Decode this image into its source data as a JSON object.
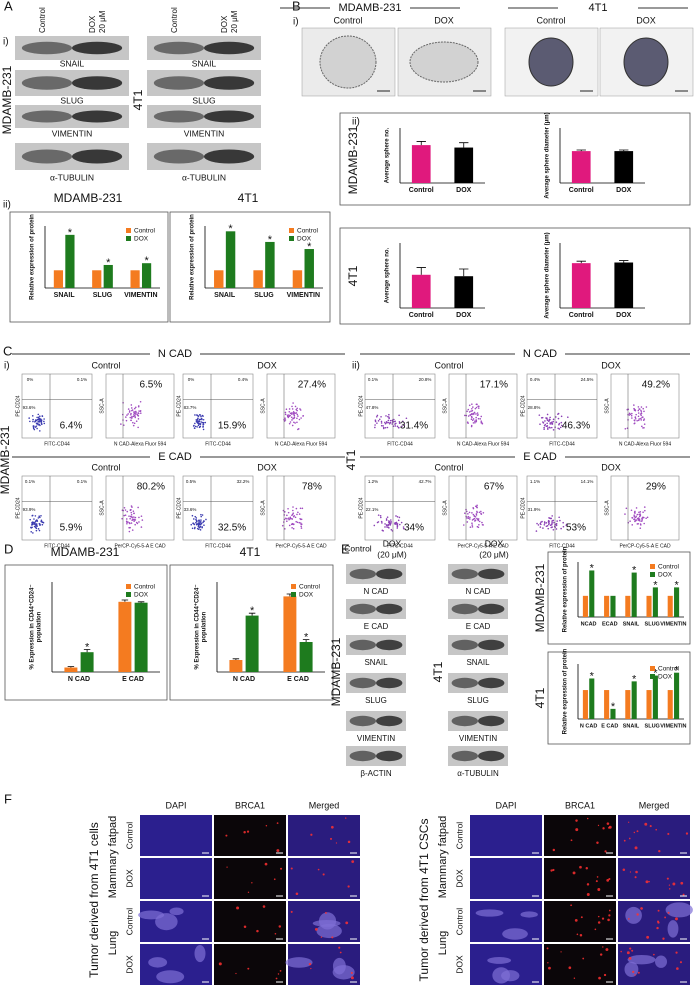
{
  "A": {
    "letter": "A",
    "i": "i)",
    "ii": "ii)",
    "lanes": [
      "Control",
      "DOX",
      "20 μM"
    ],
    "blots": [
      {
        "cell": "MDAMB-231",
        "bands": [
          "SNAIL",
          "SLUG",
          "VIMENTIN",
          "α-TUBULIN"
        ]
      },
      {
        "cell": "4T1",
        "bands": [
          "SNAIL",
          "SLUG",
          "VIMENTIN",
          "α-TUBULIN"
        ]
      }
    ]
  },
  "B": {
    "letter": "B",
    "i": "i)",
    "ii": "ii)",
    "groups": [
      {
        "cell": "MDAMB-231",
        "conditions": [
          "Control",
          "DOX"
        ]
      },
      {
        "cell": "4T1",
        "conditions": [
          "Control",
          "DOX"
        ]
      }
    ],
    "rows": [
      "MDAMB-231",
      "4T1"
    ]
  },
  "C": {
    "letter": "C",
    "panels": [
      {
        "sub": "i)",
        "cell": "MDAMB-231",
        "blocks": [
          {
            "marker": "N CAD",
            "quad_x": "FITC-CD44",
            "quad_y": "PE-CD24",
            "marker_x": "N CAD-Alexa Fluor 594",
            "marker_y": "SSC-A",
            "conditions": [
              {
                "name": "Control",
                "quadrants": [
                  "0%",
                  "0.1%",
                  "93.6%"
                ],
                "cd44": "6.4%",
                "positive": "6.5%"
              },
              {
                "name": "DOX",
                "quadrants": [
                  "0%",
                  "0.4%",
                  "83.7%"
                ],
                "cd44": "15.9%",
                "positive": "27.4%"
              }
            ]
          },
          {
            "marker": "E CAD",
            "quad_x": "FITC-CD44",
            "quad_y": "PE-CD24",
            "marker_x": "PerCP-Cy5-5-A E CAD",
            "marker_y": "SSC-A",
            "conditions": [
              {
                "name": "Control",
                "quadrants": [
                  "0.1%",
                  "0.1%",
                  "93.9%"
                ],
                "cd44": "5.9%",
                "positive": "80.2%"
              },
              {
                "name": "DOX",
                "quadrants": [
                  "0.5%",
                  "32.2%",
                  "33.6%"
                ],
                "cd44": "32.5%",
                "positive": "78%"
              }
            ]
          }
        ]
      },
      {
        "sub": "ii)",
        "cell": "4T1",
        "blocks": [
          {
            "marker": "N CAD",
            "quad_x": "FITC-CD44",
            "quad_y": "PE-CD24",
            "marker_x": "N CAD-Alexa Fluor 594",
            "marker_y": "SSC-A",
            "conditions": [
              {
                "name": "Control",
                "quadrants": [
                  "0.1%",
                  "20.8%",
                  "47.8%"
                ],
                "cd44": "31.4%",
                "positive": "17.1%"
              },
              {
                "name": "DOX",
                "quadrants": [
                  "0.4%",
                  "24.5%",
                  "28.8%"
                ],
                "cd44": "46.3%",
                "positive": "49.2%"
              }
            ]
          },
          {
            "marker": "E CAD",
            "quad_x": "FITC-CD44",
            "quad_y": "PE-CD24",
            "marker_x": "PerCP-Cy5-5-A E CAD",
            "marker_y": "SSC-A",
            "conditions": [
              {
                "name": "Control",
                "quadrants": [
                  "1.2%",
                  "42.7%",
                  "22.1%"
                ],
                "cd44": "34%",
                "positive": "67%"
              },
              {
                "name": "DOX",
                "quadrants": [
                  "1.1%",
                  "14.1%",
                  "31.9%"
                ],
                "cd44": "53%",
                "positive": "29%"
              }
            ]
          }
        ]
      }
    ]
  },
  "D": {
    "letter": "D"
  },
  "E": {
    "letter": "E",
    "blots": [
      {
        "cell": "MDAMB-231",
        "lanes": [
          "Control",
          "DOX",
          "(20 μM)"
        ],
        "bands": [
          "N CAD",
          "E CAD",
          "SNAIL",
          "SLUG",
          "VIMENTIN",
          "β-ACTIN"
        ]
      },
      {
        "cell": "4T1",
        "lanes": [
          "DOX",
          "(20 μM)"
        ],
        "bands": [
          "N CAD",
          "E CAD",
          "SNAIL",
          "SLUG",
          "VIMENTIN",
          "α-TUBULIN"
        ]
      }
    ]
  },
  "F": {
    "letter": "F",
    "channels": [
      "DAPI",
      "BRCA1",
      "Merged"
    ],
    "groups": [
      {
        "title": "Tumor derived from 4T1 cells",
        "tissues": [
          {
            "name": "Mammary fatpad",
            "rows": [
              "Control",
              "DOX"
            ]
          },
          {
            "name": "Lung",
            "rows": [
              "Control",
              "DOX"
            ]
          }
        ]
      },
      {
        "title": "Tumor derived from 4T1 CSCs",
        "tissues": [
          {
            "name": "Mammary fatpad",
            "rows": [
              "Control",
              "DOX"
            ]
          },
          {
            "name": "Lung",
            "rows": [
              "Control",
              "DOX"
            ]
          }
        ]
      }
    ]
  },
  "chart_data": [
    {
      "type": "bar",
      "title": "MDAMB-231",
      "ylabel": "Relative expression of protein",
      "categories": [
        "SNAIL",
        "SLUG",
        "VIMENTIN"
      ],
      "series": [
        {
          "name": "Control",
          "color": "#f47b20",
          "values": [
            1,
            1,
            1
          ]
        },
        {
          "name": "DOX",
          "color": "#1e7b1e",
          "values": [
            3.0,
            1.3,
            1.4
          ],
          "significance": [
            "*",
            "*",
            "*"
          ]
        }
      ],
      "ylim": [
        0,
        3.5
      ],
      "legend": "top-right"
    },
    {
      "type": "bar",
      "title": "4T1",
      "ylabel": "Relative expression of protein",
      "categories": [
        "SNAIL",
        "SLUG",
        "VIMENTIN"
      ],
      "series": [
        {
          "name": "Control",
          "color": "#f47b20",
          "values": [
            1,
            1,
            1
          ]
        },
        {
          "name": "DOX",
          "color": "#1e7b1e",
          "values": [
            3.2,
            2.6,
            2.2
          ],
          "significance": [
            "*",
            "*",
            "*"
          ]
        }
      ],
      "ylim": [
        0,
        3.5
      ],
      "legend": "top-right"
    },
    {
      "type": "bar",
      "ylabel": "Average sphere no.",
      "categories": [
        "Control",
        "DOX"
      ],
      "values": [
        31,
        29
      ],
      "errors": [
        3,
        4
      ],
      "colors": [
        "#e0197d",
        "#000000"
      ],
      "ylim": [
        0,
        45
      ]
    },
    {
      "type": "bar",
      "ylabel": "Average sphere diameter (μm)",
      "categories": [
        "Control",
        "DOX"
      ],
      "values": [
        58,
        58
      ],
      "errors": [
        2,
        2
      ],
      "colors": [
        "#e0197d",
        "#000000"
      ],
      "ylim": [
        0,
        100
      ]
    },
    {
      "type": "bar",
      "ylabel": "Average sphere no.",
      "categories": [
        "Control",
        "DOX"
      ],
      "values": [
        23,
        22
      ],
      "errors": [
        5,
        5
      ],
      "colors": [
        "#e0197d",
        "#000000"
      ],
      "ylim": [
        0,
        45
      ]
    },
    {
      "type": "bar",
      "ylabel": "Average sphere diameter (μm)",
      "categories": [
        "Control",
        "DOX"
      ],
      "values": [
        69,
        70
      ],
      "errors": [
        3,
        3
      ],
      "colors": [
        "#e0197d",
        "#000000"
      ],
      "ylim": [
        0,
        100
      ]
    },
    {
      "type": "bar",
      "title": "MDAMB-231",
      "ylabel": [
        "% Expression in CD44⁺CD24⁻",
        "population"
      ],
      "categories": [
        "N CAD",
        "E CAD"
      ],
      "series": [
        {
          "name": "Control",
          "color": "#f47b20",
          "values": [
            5,
            78
          ],
          "errors": [
            1,
            2
          ]
        },
        {
          "name": "DOX",
          "color": "#1e7b1e",
          "values": [
            22,
            77
          ],
          "errors": [
            3,
            1
          ],
          "significance": [
            "*",
            null
          ]
        }
      ],
      "ylim": [
        0,
        100
      ],
      "legend": "top-right"
    },
    {
      "type": "bar",
      "title": "4T1",
      "ylabel": [
        "% Expression in CD44⁺CD24⁻",
        "population"
      ],
      "categories": [
        "N CAD",
        "E CAD"
      ],
      "series": [
        {
          "name": "Control",
          "color": "#f47b20",
          "values": [
            10,
            63
          ],
          "errors": [
            1,
            2
          ]
        },
        {
          "name": "DOX",
          "color": "#1e7b1e",
          "values": [
            47,
            25
          ],
          "errors": [
            2,
            2
          ],
          "significance": [
            "*",
            "*"
          ]
        }
      ],
      "ylim": [
        0,
        75
      ],
      "legend": "top-right"
    },
    {
      "type": "bar",
      "title": "MDAMB-231",
      "ylabel": "Relative expression of protein",
      "categories": [
        "NCAD",
        "ECAD",
        "SNAIL",
        "SLUG",
        "VIMENTIN"
      ],
      "series": [
        {
          "name": "Control",
          "color": "#f47b20",
          "values": [
            1,
            1,
            1,
            1,
            1
          ]
        },
        {
          "name": "DOX",
          "color": "#1e7b1e",
          "values": [
            2.2,
            1.0,
            2.1,
            1.4,
            1.4
          ],
          "significance": [
            "*",
            null,
            "*",
            "*",
            "*"
          ]
        }
      ],
      "ylim": [
        0,
        2.6
      ],
      "legend": "top-right"
    },
    {
      "type": "bar",
      "title": "4T1",
      "ylabel": "Relative expression of protein",
      "categories": [
        "N CAD",
        "E CAD",
        "SNAIL",
        "SLUG",
        "VIMENTIN"
      ],
      "series": [
        {
          "name": "Control",
          "color": "#f47b20",
          "values": [
            1,
            1,
            1,
            1,
            1
          ]
        },
        {
          "name": "DOX",
          "color": "#1e7b1e",
          "values": [
            1.4,
            0.35,
            1.3,
            1.5,
            1.6
          ],
          "significance": [
            "*",
            "*",
            "*",
            "*",
            "*"
          ]
        }
      ],
      "ylim": [
        0,
        1.9
      ],
      "legend": "top-right"
    }
  ]
}
